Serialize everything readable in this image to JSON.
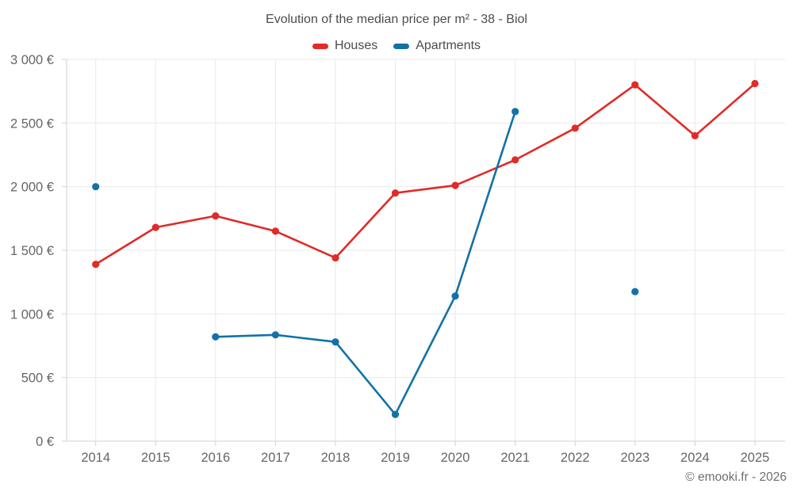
{
  "chart_data": {
    "type": "line",
    "title": "Evolution of the median price per m² - 38 - Biol",
    "x": [
      2014,
      2015,
      2016,
      2017,
      2018,
      2019,
      2020,
      2021,
      2022,
      2023,
      2024,
      2025
    ],
    "series": [
      {
        "name": "Houses",
        "color": "#e02b28",
        "values": [
          1390,
          1680,
          1770,
          1650,
          1440,
          1950,
          2010,
          2210,
          2460,
          2800,
          2400,
          2810
        ]
      },
      {
        "name": "Apartments",
        "color": "#1272a8",
        "values": [
          2000,
          null,
          820,
          835,
          780,
          210,
          1140,
          2590,
          null,
          1175,
          null,
          null
        ]
      }
    ],
    "ylim": [
      0,
      3000
    ],
    "ytick_interval": 500,
    "ytick_labels": [
      "0 €",
      "500 €",
      "1 000 €",
      "1 500 €",
      "2 000 €",
      "2 500 €",
      "3 000 €"
    ],
    "grid": true,
    "legend_position": "top",
    "colors": {
      "gridline": "#e9e9e9",
      "axis": "#d2d2d2",
      "tick_label": "#666666",
      "title_text": "#4c4c4c"
    }
  },
  "footer": {
    "text": "© emooki.fr - 2026"
  }
}
